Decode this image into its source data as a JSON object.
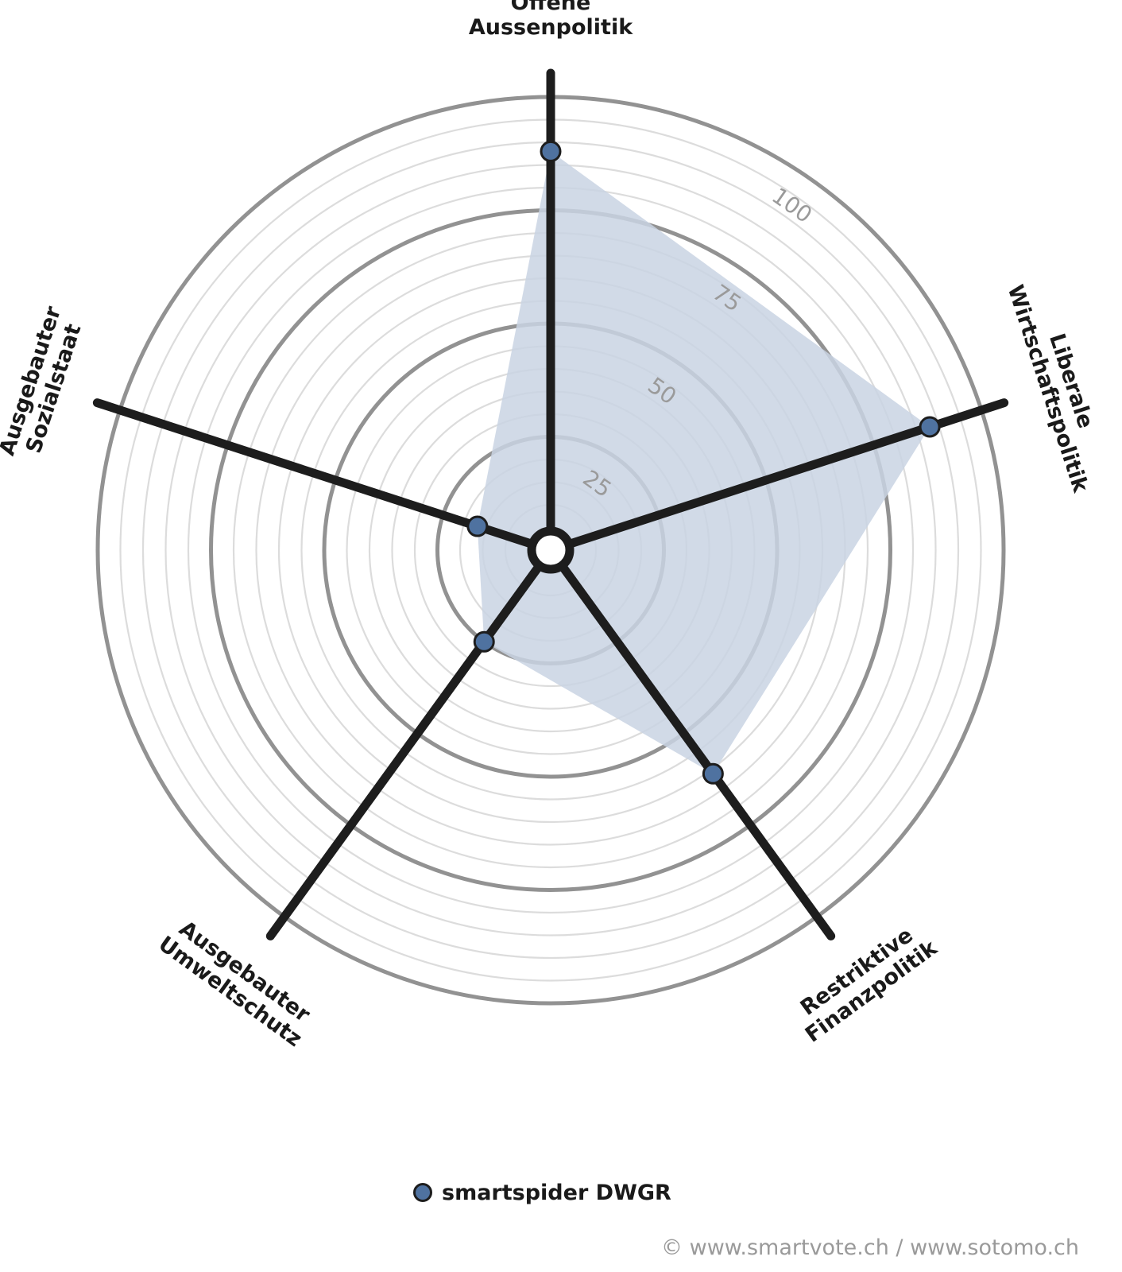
{
  "chart_data": {
    "type": "radar",
    "axes": [
      {
        "id": "aussen",
        "lines": [
          "Offene",
          "Aussenpolitik"
        ]
      },
      {
        "id": "wirtschaft",
        "lines": [
          "Liberale",
          "Wirtschaftspolitik"
        ]
      },
      {
        "id": "finanz",
        "lines": [
          "Restriktive",
          "Finanzpolitik"
        ]
      },
      {
        "id": "umwelt",
        "lines": [
          "Ausgebauter",
          "Umweltschutz"
        ]
      },
      {
        "id": "sozial",
        "lines": [
          "Ausgebauter",
          "Sozialstaat"
        ]
      }
    ],
    "rlim": [
      0,
      100
    ],
    "ticks": [
      "25",
      "50",
      "75",
      "100"
    ],
    "tick_values": [
      25,
      50,
      75,
      100
    ],
    "minor_step": 5,
    "series": [
      {
        "name": "smartspider DWGR",
        "values": [
          88,
          88,
          61,
          25,
          17
        ],
        "color": "#4f72a0",
        "fill": "#c9d3e3"
      }
    ],
    "legend_position": "bottom-center"
  },
  "footer": {
    "copyright": "© www.smartvote.ch / www.sotomo.ch"
  }
}
